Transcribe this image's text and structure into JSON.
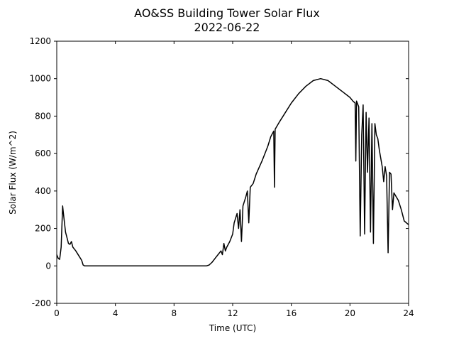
{
  "chart_data": {
    "type": "line",
    "title": "AO&SS Building Tower Solar Flux",
    "subtitle": "2022-06-22",
    "x_label": "Time (UTC)",
    "y_label": "Solar Flux (W/m^2)",
    "color": "#000000",
    "xlim": [
      0,
      24
    ],
    "xticks": [
      0,
      4,
      8,
      12,
      16,
      20,
      24
    ],
    "ylim": [
      -200,
      1200
    ],
    "yticks": [
      -200,
      0,
      200,
      400,
      600,
      800,
      1000,
      1200
    ],
    "x": [
      0,
      0.1,
      0.2,
      0.3,
      0.4,
      0.5,
      0.6,
      0.7,
      0.8,
      0.9,
      1.0,
      1.1,
      1.3,
      1.5,
      1.7,
      1.8,
      1.9,
      2.0,
      10.2,
      10.4,
      10.6,
      10.8,
      11.0,
      11.2,
      11.3,
      11.4,
      11.5,
      11.6,
      11.8,
      12.0,
      12.1,
      12.3,
      12.4,
      12.5,
      12.6,
      12.7,
      12.9,
      13.0,
      13.1,
      13.2,
      13.4,
      13.6,
      14.0,
      14.2,
      14.4,
      14.6,
      14.8,
      14.85,
      14.9,
      15.2,
      15.6,
      16.0,
      16.5,
      17.0,
      17.5,
      18.0,
      18.5,
      19.0,
      19.5,
      20.0,
      20.2,
      20.35,
      20.4,
      20.45,
      20.6,
      20.7,
      20.8,
      20.9,
      21.0,
      21.1,
      21.2,
      21.3,
      21.4,
      21.5,
      21.6,
      21.7,
      21.8,
      21.9,
      22.0,
      22.2,
      22.3,
      22.4,
      22.5,
      22.6,
      22.7,
      22.8,
      22.9,
      23.0,
      23.3,
      23.5,
      23.7,
      24.0
    ],
    "values": [
      60,
      40,
      35,
      100,
      320,
      250,
      180,
      150,
      120,
      115,
      130,
      100,
      80,
      55,
      30,
      5,
      0,
      0,
      0,
      5,
      20,
      40,
      60,
      80,
      60,
      120,
      80,
      100,
      130,
      170,
      230,
      280,
      200,
      300,
      130,
      320,
      370,
      400,
      230,
      420,
      440,
      490,
      560,
      600,
      640,
      690,
      720,
      420,
      730,
      770,
      820,
      870,
      920,
      960,
      990,
      1000,
      990,
      960,
      930,
      900,
      880,
      870,
      560,
      880,
      850,
      160,
      700,
      860,
      170,
      820,
      500,
      790,
      180,
      760,
      120,
      760,
      700,
      680,
      620,
      530,
      450,
      530,
      480,
      70,
      500,
      490,
      300,
      390,
      350,
      300,
      240,
      220
    ]
  }
}
